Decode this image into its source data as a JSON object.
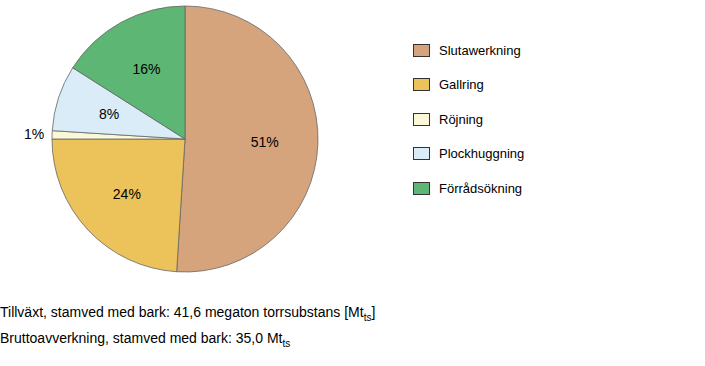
{
  "chart_data": {
    "type": "pie",
    "categories": [
      "Slutawerkning",
      "Gallring",
      "Röjning",
      "Plockhuggning",
      "Förrådsökning"
    ],
    "values": [
      51,
      24,
      1,
      8,
      16
    ],
    "value_labels": [
      "51%",
      "24%",
      "1%",
      "8%",
      "16%"
    ],
    "colors": [
      "#d6a47c",
      "#ecc25a",
      "#fbf8d8",
      "#d9ecf8",
      "#5db673"
    ],
    "data_labels": true,
    "legend": "right",
    "annotations": [
      {
        "text": "Tillväxt, stamved med bark: 41,6 megaton torrsubstans [Mt",
        "subscript": "ts",
        "suffix": "]"
      },
      {
        "text": "Bruttoavverkning, stamved med bark: 35,0 Mt",
        "subscript": "ts"
      }
    ]
  }
}
